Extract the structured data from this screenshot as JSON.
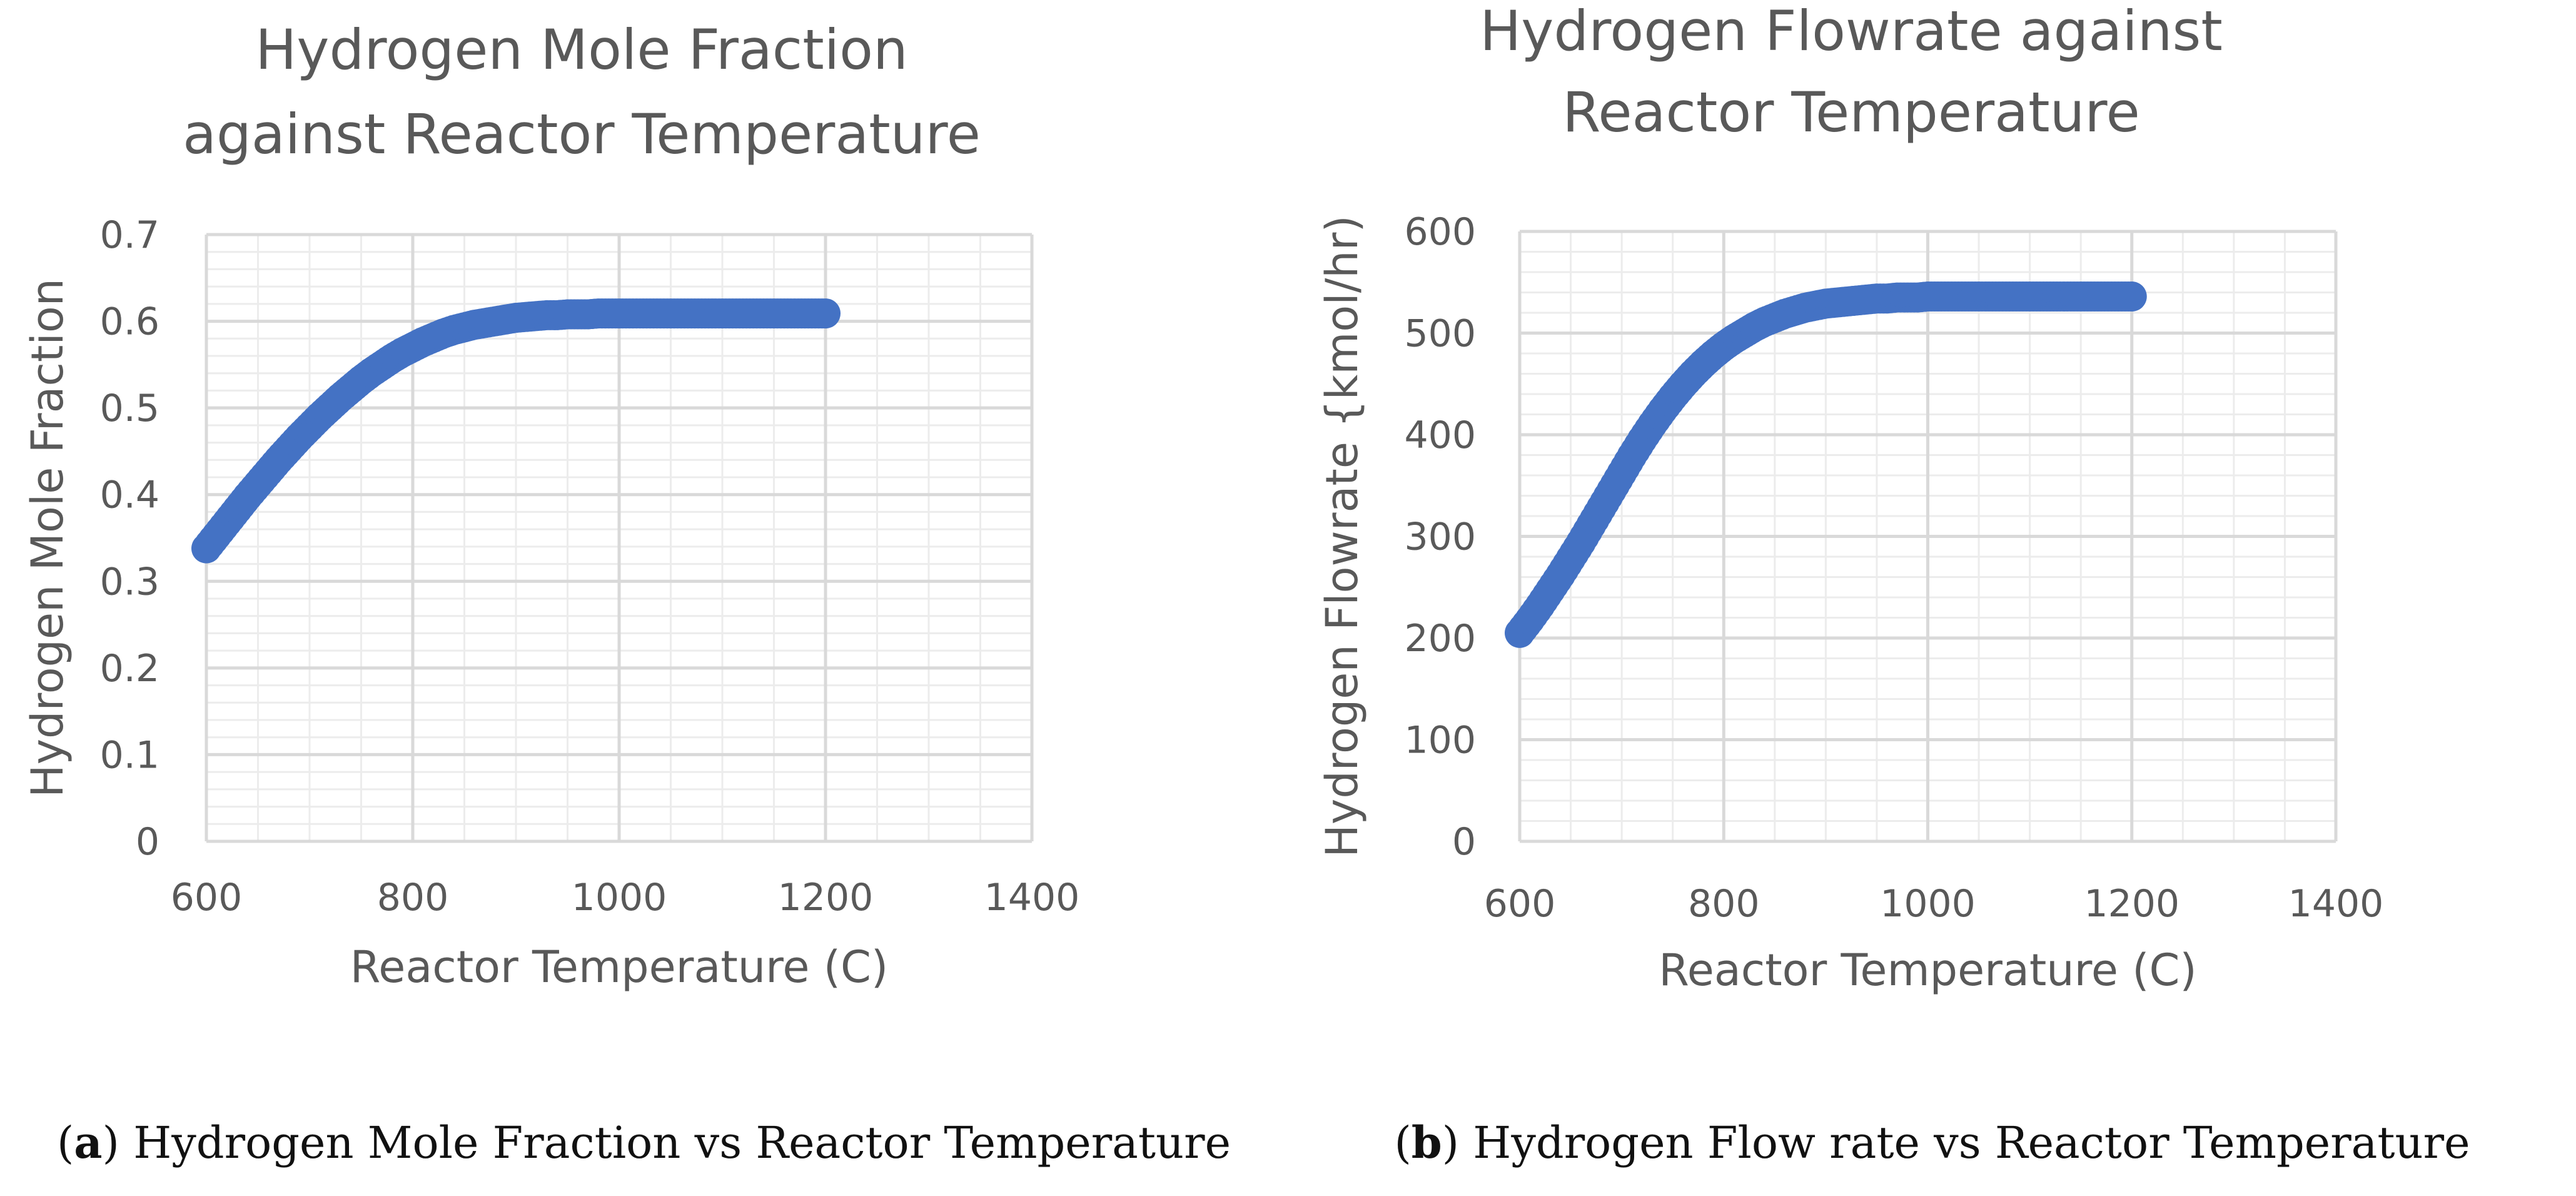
{
  "colors": {
    "series": "#4472c4",
    "text": "#595959",
    "major_grid": "#d9d9d9",
    "minor_grid": "#ececec"
  },
  "chart_data": [
    {
      "type": "scatter",
      "title_lines": [
        "Hydrogen Mole Fraction",
        "against Reactor Temperature"
      ],
      "xlabel": "Reactor Temperature (C)",
      "ylabel": "Hydrogen Mole Fraction",
      "xlim": [
        600,
        1400
      ],
      "ylim": [
        0,
        0.7
      ],
      "x_ticks": [
        "600",
        "800",
        "1000",
        "1200",
        "1400"
      ],
      "y_ticks": [
        "0",
        "0.1",
        "0.2",
        "0.3",
        "0.4",
        "0.5",
        "0.6",
        "0.7"
      ],
      "x_tick_values": [
        600,
        800,
        1000,
        1200,
        1400
      ],
      "y_tick_values": [
        0,
        0.1,
        0.2,
        0.3,
        0.4,
        0.5,
        0.6,
        0.7
      ],
      "x_minor_step": 50,
      "y_minor_step": 0.02,
      "grid": true,
      "series": [
        {
          "name": "Hydrogen Mole Fraction",
          "x": [
            600,
            610,
            620,
            630,
            640,
            650,
            660,
            670,
            680,
            690,
            700,
            710,
            720,
            730,
            740,
            750,
            760,
            770,
            780,
            790,
            800,
            810,
            820,
            830,
            840,
            850,
            860,
            870,
            880,
            890,
            900,
            910,
            920,
            930,
            940,
            950,
            960,
            970,
            980,
            990,
            1000,
            1010,
            1020,
            1030,
            1040,
            1050,
            1060,
            1070,
            1080,
            1090,
            1100,
            1110,
            1120,
            1130,
            1140,
            1150,
            1160,
            1170,
            1180,
            1190,
            1200
          ],
          "y": [
            0.338,
            0.353,
            0.368,
            0.383,
            0.398,
            0.412,
            0.426,
            0.44,
            0.453,
            0.466,
            0.478,
            0.49,
            0.501,
            0.512,
            0.522,
            0.532,
            0.541,
            0.549,
            0.557,
            0.564,
            0.57,
            0.576,
            0.581,
            0.586,
            0.59,
            0.593,
            0.596,
            0.598,
            0.6,
            0.602,
            0.604,
            0.605,
            0.606,
            0.607,
            0.607,
            0.608,
            0.608,
            0.608,
            0.609,
            0.609,
            0.609,
            0.609,
            0.609,
            0.609,
            0.609,
            0.609,
            0.609,
            0.609,
            0.609,
            0.609,
            0.609,
            0.609,
            0.609,
            0.609,
            0.609,
            0.609,
            0.609,
            0.609,
            0.609,
            0.609,
            0.609
          ]
        }
      ],
      "caption_letter": "a",
      "caption_text": " Hydrogen Mole Fraction vs Reactor Temperature"
    },
    {
      "type": "scatter",
      "title_lines": [
        "Hydrogen Flowrate against",
        "Reactor Temperature"
      ],
      "xlabel": "Reactor Temperature (C)",
      "ylabel": "Hydrogen Flowrate {kmol/hr)",
      "xlim": [
        600,
        1400
      ],
      "ylim": [
        0,
        600
      ],
      "x_ticks": [
        "600",
        "800",
        "1000",
        "1200",
        "1400"
      ],
      "y_ticks": [
        "0",
        "100",
        "200",
        "300",
        "400",
        "500",
        "600"
      ],
      "x_tick_values": [
        600,
        800,
        1000,
        1200,
        1400
      ],
      "y_tick_values": [
        0,
        100,
        200,
        300,
        400,
        500,
        600
      ],
      "x_minor_step": 50,
      "y_minor_step": 20,
      "grid": true,
      "series": [
        {
          "name": "Hydrogen Flowrate",
          "x": [
            600,
            610,
            620,
            630,
            640,
            650,
            660,
            670,
            680,
            690,
            700,
            710,
            720,
            730,
            740,
            750,
            760,
            770,
            780,
            790,
            800,
            810,
            820,
            830,
            840,
            850,
            860,
            870,
            880,
            890,
            900,
            910,
            920,
            930,
            940,
            950,
            960,
            970,
            980,
            990,
            1000,
            1010,
            1020,
            1030,
            1040,
            1050,
            1060,
            1070,
            1080,
            1090,
            1100,
            1110,
            1120,
            1130,
            1140,
            1150,
            1160,
            1170,
            1180,
            1190,
            1200
          ],
          "y": [
            205,
            218,
            232,
            247,
            262,
            278,
            294,
            311,
            328,
            345,
            362,
            379,
            395,
            410,
            424,
            437,
            449,
            460,
            470,
            479,
            487,
            494,
            500,
            506,
            511,
            515,
            519,
            522,
            525,
            527,
            529,
            530,
            531,
            532,
            533,
            534,
            534,
            535,
            535,
            535,
            536,
            536,
            536,
            536,
            536,
            536,
            536,
            536,
            536,
            536,
            536,
            536,
            536,
            536,
            536,
            536,
            536,
            536,
            536,
            536,
            536
          ]
        }
      ],
      "caption_letter": "b",
      "caption_text": " Hydrogen Flow rate vs Reactor Temperature"
    }
  ]
}
